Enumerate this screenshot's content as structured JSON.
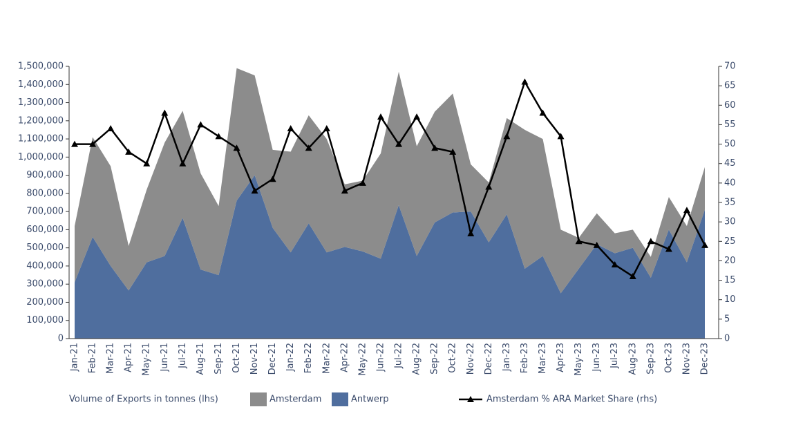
{
  "chart_data": {
    "type": "stacked-area-line",
    "legend_title": "Volume of Exports in tonnes (lhs)",
    "categories": [
      "Jan-21",
      "Feb-21",
      "Mar-21",
      "Apr-21",
      "May-21",
      "Jun-21",
      "Jul-21",
      "Aug-21",
      "Sep-21",
      "Oct-21",
      "Nov-21",
      "Dec-21",
      "Jan-22",
      "Feb-22",
      "Mar-22",
      "Apr-22",
      "May-22",
      "Jun-22",
      "Jul-22",
      "Aug-22",
      "Sep-22",
      "Oct-22",
      "Nov-22",
      "Dec-22",
      "Jan-23",
      "Feb-23",
      "Mar-23",
      "Apr-23",
      "May-23",
      "Jun-23",
      "Jul-23",
      "Aug-23",
      "Sep-23",
      "Oct-23",
      "Nov-23",
      "Dec-23"
    ],
    "series": [
      {
        "name": "Antwerp",
        "color": "#4f6e9e",
        "values": [
          310000,
          560000,
          400000,
          265000,
          420000,
          455000,
          665000,
          380000,
          350000,
          760000,
          900000,
          610000,
          475000,
          635000,
          475000,
          505000,
          480000,
          440000,
          735000,
          455000,
          640000,
          695000,
          700000,
          530000,
          685000,
          385000,
          455000,
          250000,
          385000,
          520000,
          470000,
          500000,
          335000,
          600000,
          420000,
          710000
        ]
      },
      {
        "name": "Amsterdam",
        "color": "#8c8c8c",
        "values": [
          310000,
          550000,
          550000,
          245000,
          400000,
          625000,
          590000,
          530000,
          380000,
          730000,
          550000,
          430000,
          555000,
          595000,
          625000,
          345000,
          390000,
          580000,
          735000,
          605000,
          610000,
          655000,
          260000,
          330000,
          530000,
          765000,
          645000,
          350000,
          170000,
          170000,
          110000,
          100000,
          115000,
          180000,
          200000,
          235000
        ]
      },
      {
        "name": "Amsterdam % ARA Market Share (rhs)",
        "color": "#000000",
        "axis": "y2",
        "values": [
          50,
          50,
          54,
          48,
          45,
          58,
          45,
          55,
          52,
          49,
          38,
          41,
          54,
          49,
          54,
          38,
          40,
          57,
          50,
          57,
          49,
          48,
          27,
          39,
          52,
          66,
          58,
          52,
          25,
          24,
          19,
          16,
          25,
          23,
          33,
          24
        ]
      }
    ],
    "ylim": [
      0,
      1500000
    ],
    "yticks": [
      0,
      {
        "value": 100000,
        "label": "100,000"
      },
      {
        "value": 200000,
        "label": "200,000"
      },
      {
        "value": 300000,
        "label": "300,000"
      },
      {
        "value": 400000,
        "label": "400,000"
      },
      {
        "value": 500000,
        "label": "500,000"
      },
      {
        "value": 600000,
        "label": "600,000"
      },
      {
        "value": 700000,
        "label": "700,000"
      },
      {
        "value": 800000,
        "label": "800,000"
      },
      {
        "value": 900000,
        "label": "900,000"
      },
      {
        "value": 1000000,
        "label": "1,000,000"
      },
      {
        "value": 1100000,
        "label": "1,100,000"
      },
      {
        "value": 1200000,
        "label": "1,200,000"
      },
      {
        "value": 1300000,
        "label": "1,300,000"
      },
      {
        "value": 1400000,
        "label": "1,400,000"
      },
      {
        "value": 1500000,
        "label": "1,500,000"
      }
    ],
    "y2lim": [
      0,
      70
    ],
    "y2ticks": [
      0,
      5,
      10,
      15,
      20,
      25,
      30,
      35,
      40,
      45,
      50,
      55,
      60,
      65,
      70
    ]
  }
}
